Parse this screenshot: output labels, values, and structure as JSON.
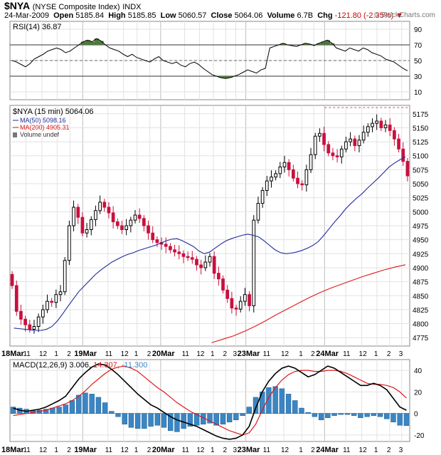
{
  "header": {
    "symbol": "$NYA",
    "name": "(NYSE Composite Index)",
    "exchange": "INDX",
    "date": "24-Mar-2009",
    "open_label": "Open",
    "open": "5185.84",
    "high_label": "High",
    "high": "5185.85",
    "low_label": "Low",
    "low": "5060.57",
    "close_label": "Close",
    "close": "5064.06",
    "volume_label": "Volume",
    "volume": "6.7B",
    "chg_label": "Chg",
    "chg": "-121.80 (-2.35%)",
    "down_arrow": "▼",
    "credit": "© StockCharts.com"
  },
  "colors": {
    "up": "#000000",
    "down": "#c8103e",
    "ma50": "#1f2c9a",
    "ma200": "#e01818",
    "macd_hist": "#3a86c4",
    "rsi_fill": "#4e7a3c",
    "grid": "#c8c8c8"
  },
  "chart_data": [
    {
      "type": "line",
      "title": "RSI(14) 36.87",
      "yticks": [
        10,
        30,
        50,
        70,
        90
      ],
      "reference_lines": [
        30,
        50,
        70
      ],
      "ylim": [
        0,
        100
      ],
      "series": [
        {
          "name": "RSI(14)",
          "values": [
            50,
            48,
            45,
            42,
            46,
            52,
            55,
            58,
            62,
            64,
            66,
            64,
            60,
            62,
            66,
            70,
            74,
            76,
            74,
            78,
            75,
            70,
            66,
            64,
            62,
            58,
            55,
            58,
            54,
            52,
            50,
            48,
            52,
            55,
            50,
            48,
            46,
            48,
            44,
            42,
            46,
            48,
            45,
            40,
            36,
            32,
            30,
            28,
            27,
            28,
            30,
            32,
            35,
            38,
            36,
            34,
            38,
            40,
            66,
            68,
            70,
            72,
            70,
            69,
            68,
            70,
            72,
            71,
            69,
            72,
            74,
            76,
            72,
            66,
            64,
            62,
            66,
            64,
            62,
            66,
            64,
            60,
            58,
            56,
            52,
            50,
            48,
            44,
            40,
            36.87
          ]
        }
      ]
    },
    {
      "type": "candlestick",
      "title": "$NYA (15 min) 5064.06",
      "legend": [
        "MA(50) 5098.16",
        "MA(200) 4905.31",
        "Volume undef"
      ],
      "ylim": [
        4760,
        5190
      ],
      "yticks": [
        4775,
        4800,
        4825,
        4850,
        4875,
        4900,
        4925,
        4950,
        4975,
        5000,
        5025,
        5050,
        5075,
        5100,
        5125,
        5150,
        5175
      ],
      "dashed_high": 5186,
      "closes": [
        4868,
        4822,
        4808,
        4798,
        4790,
        4795,
        4812,
        4825,
        4840,
        4838,
        4852,
        4857,
        4913,
        4975,
        5008,
        4990,
        4962,
        4968,
        4986,
        5002,
        5017,
        5008,
        4998,
        4982,
        4975,
        4968,
        4975,
        4985,
        4994,
        4988,
        4975,
        4962,
        4950,
        4945,
        4942,
        4938,
        4932,
        4928,
        4925,
        4920,
        4918,
        4915,
        4905,
        4900,
        4910,
        4920,
        4890,
        4880,
        4860,
        4845,
        4828,
        4826,
        4840,
        4852,
        4832,
        4985,
        5015,
        5038,
        5055,
        5062,
        5068,
        5080,
        5088,
        5075,
        5060,
        5050,
        5048,
        5075,
        5102,
        5135,
        5140,
        5120,
        5105,
        5100,
        5098,
        5112,
        5125,
        5130,
        5118,
        5128,
        5142,
        5152,
        5158,
        5162,
        5150,
        5155,
        5145,
        5130,
        5112,
        5090,
        5064.06
      ],
      "ma50": {
        "name": "MA(50)",
        "values": [
          4792,
          4791,
          4790,
          4789,
          4788,
          4788,
          4790,
          4795,
          4805,
          4818,
          4832,
          4845,
          4858,
          4868,
          4878,
          4888,
          4896,
          4903,
          4910,
          4915,
          4920,
          4924,
          4927,
          4931,
          4934,
          4937,
          4940,
          4944,
          4948,
          4951,
          4952,
          4948,
          4943,
          4938,
          4930,
          4925,
          4928,
          4935,
          4942,
          4948,
          4952,
          4955,
          4958,
          4960,
          4958,
          4955,
          4948,
          4940,
          4932,
          4927,
          4925,
          4926,
          4928,
          4931,
          4935,
          4940,
          4947,
          4958,
          4970,
          4982,
          4993,
          5005,
          5015,
          5024,
          5032,
          5042,
          5051,
          5060,
          5070,
          5080,
          5087,
          5093,
          5098.16
        ]
      },
      "ma200": {
        "name": "MA(200)",
        "values": [
          4766,
          4772,
          4778,
          4786,
          4795,
          4805,
          4816,
          4826,
          4836,
          4846,
          4855,
          4863,
          4870,
          4877,
          4884,
          4890,
          4896,
          4901,
          4905.31
        ]
      }
    },
    {
      "type": "line",
      "title": "MACD(12,26,9) 3.006, 14.307, -11.300",
      "yticks": [
        -20,
        0,
        20,
        40
      ],
      "ylim": [
        -26,
        50
      ],
      "series": [
        {
          "name": "MACD(12,26,9)",
          "values": [
            5,
            3,
            2,
            3,
            4,
            6,
            9,
            12,
            16,
            24,
            32,
            38,
            43,
            46,
            45,
            41,
            36,
            30,
            24,
            18,
            13,
            8,
            5,
            1,
            -3,
            -6,
            -8,
            -10,
            -12,
            -15,
            -18,
            -21,
            -23,
            -24,
            -23,
            -20,
            -12,
            5,
            20,
            30,
            37,
            42,
            44,
            42,
            38,
            34,
            36,
            40,
            44,
            42,
            38,
            34,
            30,
            26,
            26,
            28,
            26,
            22,
            14,
            6,
            3.006
          ]
        },
        {
          "name": "Signal",
          "values": [
            -2,
            -1,
            0,
            1,
            2,
            3,
            5,
            7,
            9,
            12,
            16,
            21,
            27,
            32,
            37,
            41,
            43,
            44,
            42,
            39,
            34,
            29,
            24,
            20,
            15,
            10,
            6,
            2,
            -1,
            -4,
            -7,
            -10,
            -13,
            -16,
            -18,
            -20,
            -18,
            -10,
            3,
            15,
            24,
            31,
            36,
            39,
            40,
            40,
            39,
            39,
            40,
            40,
            39,
            37,
            34,
            31,
            28,
            27,
            27,
            26,
            24,
            20,
            14.307
          ]
        },
        {
          "name": "Histogram",
          "values": [
            6,
            5,
            4,
            3,
            3,
            4,
            5,
            6,
            8,
            12,
            17,
            19,
            18,
            15,
            10,
            2,
            -3,
            -10,
            -13,
            -14,
            -14,
            -12,
            -11,
            -13,
            -16,
            -17,
            -14,
            -12,
            -11,
            -10,
            -9,
            -11,
            -10,
            -8,
            -6,
            -2,
            6,
            15,
            20,
            24,
            25,
            23,
            18,
            12,
            5,
            1,
            -3,
            -6,
            -4,
            -2,
            -1,
            -1,
            -2,
            -4,
            -3,
            -2,
            -3,
            -5,
            -8,
            -11,
            -11.3
          ]
        }
      ]
    }
  ],
  "time_axis": {
    "top_labels": [
      "18Mar",
      "11",
      "12",
      "1",
      "2",
      "19Mar",
      "11",
      "12",
      "1",
      "2",
      "20Mar",
      "11",
      "12",
      "1",
      "2",
      "3",
      "23Mar",
      "11",
      "12",
      "1",
      "2",
      "24Mar",
      "11",
      "12",
      "1",
      "2",
      "3"
    ],
    "bottom_labels": [
      "18Mar",
      "11",
      "12",
      "1",
      "2",
      "19Mar",
      "11",
      "12",
      "1",
      "2",
      "20Mar",
      "11",
      "12",
      "1",
      "2",
      "3",
      "23Mar",
      "11",
      "12",
      "1",
      "2",
      "24Mar",
      "11",
      "12",
      "1",
      "2",
      "3"
    ]
  }
}
